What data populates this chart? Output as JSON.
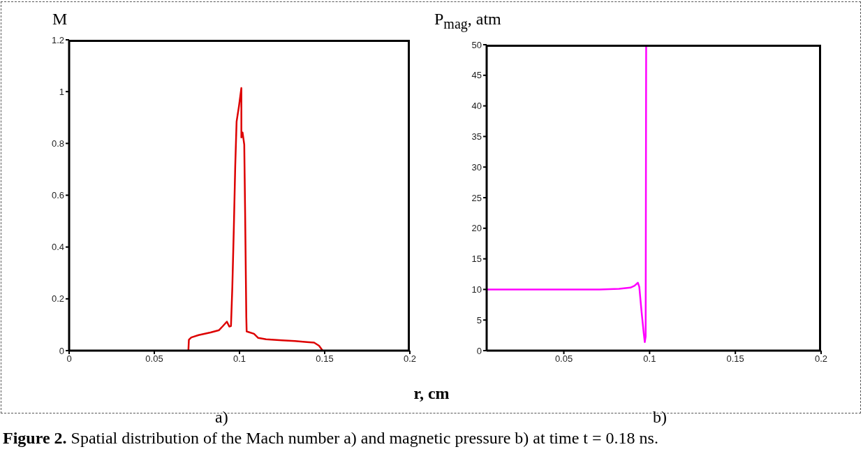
{
  "chart_data": [
    {
      "type": "line",
      "xlabel": "r, cm",
      "ylabel": "M",
      "annotations": [
        "a)",
        "Figure 2. Spatial distribution of the Mach number a) and magnetic pressure b) at time t = 0.18 ns."
      ],
      "xlim": [
        0,
        0.2
      ],
      "xticks": [
        0,
        0.05,
        0.1,
        0.15,
        0.2
      ],
      "ylim": [
        0,
        1.2
      ],
      "yticks": [
        0,
        0.2,
        0.4,
        0.6,
        0.8,
        1,
        1.2
      ],
      "grid": false,
      "legend": false,
      "marker": "none",
      "line_style": "solid",
      "series": [
        {
          "color": "#dd0000",
          "x": [
            0.07,
            0.0703,
            0.0717,
            0.076,
            0.083,
            0.088,
            0.09,
            0.0926,
            0.094,
            0.095,
            0.0958,
            0.0967,
            0.0975,
            0.0983,
            0.0997,
            0.1011,
            0.1011,
            0.1018,
            0.1028,
            0.1033,
            0.104,
            0.1042,
            0.1085,
            0.111,
            0.1156,
            0.125,
            0.1325,
            0.1396,
            0.1438,
            0.1467,
            0.1488
          ],
          "values": [
            0,
            0.042,
            0.051,
            0.06,
            0.07,
            0.079,
            0.093,
            0.112,
            0.093,
            0.095,
            0.246,
            0.479,
            0.712,
            0.884,
            0.944,
            1.014,
            0.823,
            0.842,
            0.795,
            0.535,
            0.13,
            0.074,
            0.065,
            0.049,
            0.044,
            0.04,
            0.037,
            0.033,
            0.031,
            0.019,
            0
          ]
        }
      ]
    },
    {
      "type": "line",
      "ylabel": "P$_{mag}$, atm",
      "annotations": [
        "b)"
      ],
      "xlim": [
        0.005,
        0.2
      ],
      "xticks": [
        0.05,
        0.1,
        0.15,
        0.2
      ],
      "ylim": [
        0,
        50
      ],
      "yticks": [
        0,
        5,
        10,
        15,
        20,
        25,
        30,
        35,
        40,
        45,
        50
      ],
      "grid": false,
      "legend": false,
      "marker": "none",
      "line_style": "solid",
      "series": [
        {
          "color": "#ff00ff",
          "x": [
            0.0054,
            0.0708,
            0.0822,
            0.0888,
            0.0912,
            0.0932,
            0.094,
            0.0953,
            0.0966,
            0.0972,
            0.0977,
            0.098
          ],
          "values": [
            10,
            10,
            10.1,
            10.3,
            10.6,
            11.1,
            10.4,
            6.4,
            2.8,
            1.4,
            2.3,
            50
          ]
        }
      ]
    }
  ]
}
